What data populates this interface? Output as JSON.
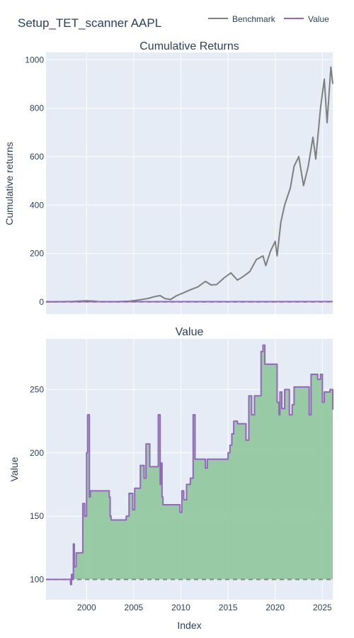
{
  "figure": {
    "title": "Setup_TET_scanner AAPL",
    "legend": [
      {
        "name": "Benchmark",
        "color": "#7f7f7f"
      },
      {
        "name": "Value",
        "color": "#9467bd"
      }
    ],
    "colors": {
      "plot_bg": "#e5ecf6",
      "grid": "#ffffff",
      "benchmark": "#7f7f7f",
      "value": "#9467bd",
      "fill": "#8fc79c",
      "baseline": "#888888"
    }
  },
  "chart_data": [
    {
      "type": "line",
      "title": "Cumulative Returns",
      "xlabel": "",
      "ylabel": "Cumulative returns",
      "xlim": [
        1995.7,
        2026.1
      ],
      "ylim": [
        -50,
        1030
      ],
      "x_ticks": [
        2000,
        2005,
        2010,
        2015,
        2020,
        2025
      ],
      "y_ticks": [
        0,
        200,
        400,
        600,
        800,
        1000
      ],
      "y_tick_labels": [
        "0",
        "200",
        "400",
        "600",
        "800",
        "1000"
      ],
      "grid": true,
      "legend": "top-right",
      "series": [
        {
          "name": "Benchmark",
          "x": [
            1995.7,
            1997.0,
            1998.5,
            2000.0,
            2000.8,
            2001.5,
            2003.0,
            2004.5,
            2005.5,
            2006.5,
            2007.2,
            2007.8,
            2008.3,
            2008.9,
            2009.5,
            2010.3,
            2011.0,
            2011.8,
            2012.6,
            2013.2,
            2013.8,
            2014.6,
            2015.3,
            2016.0,
            2016.6,
            2017.3,
            2018.0,
            2018.7,
            2019.0,
            2019.5,
            2020.0,
            2020.2,
            2020.6,
            2021.0,
            2021.6,
            2022.0,
            2022.5,
            2023.0,
            2023.5,
            2024.0,
            2024.3,
            2024.8,
            2025.2,
            2025.5,
            2025.9,
            2026.1
          ],
          "y": [
            0,
            1,
            2,
            5,
            3,
            1,
            1,
            3,
            8,
            14,
            22,
            26,
            14,
            10,
            25,
            38,
            50,
            62,
            85,
            70,
            72,
            100,
            120,
            90,
            105,
            125,
            175,
            190,
            150,
            210,
            250,
            190,
            330,
            400,
            470,
            560,
            600,
            480,
            560,
            680,
            590,
            800,
            920,
            740,
            970,
            900
          ]
        },
        {
          "name": "Value",
          "x": [
            1995.7,
            2026.1
          ],
          "y": [
            1,
            1.5
          ]
        }
      ],
      "baseline": {
        "value": 0,
        "style": "dashed"
      }
    },
    {
      "type": "area",
      "title": "Value",
      "xlabel": "Index",
      "ylabel": "Value",
      "xlim": [
        1995.7,
        2026.1
      ],
      "ylim": [
        84,
        290
      ],
      "x_ticks": [
        2000,
        2005,
        2010,
        2015,
        2020,
        2025
      ],
      "x_tick_labels": [
        "2000",
        "2005",
        "2010",
        "2015",
        "2020",
        "2025"
      ],
      "y_ticks": [
        100,
        150,
        200,
        250
      ],
      "y_tick_labels": [
        "100",
        "150",
        "200",
        "250"
      ],
      "grid": true,
      "series": [
        {
          "name": "Value",
          "x": [
            1995.7,
            1998.2,
            1998.3,
            1998.4,
            1998.5,
            1998.6,
            1998.7,
            1998.9,
            1999.4,
            1999.6,
            1999.8,
            2000.0,
            2000.1,
            2000.3,
            2000.4,
            2002.2,
            2002.4,
            2002.5,
            2002.6,
            2004.0,
            2004.2,
            2004.5,
            2004.9,
            2005.1,
            2005.5,
            2005.7,
            2006.1,
            2006.3,
            2006.7,
            2007.5,
            2007.6,
            2007.8,
            2007.9,
            2008.0,
            2008.1,
            2009.8,
            2009.9,
            2010.1,
            2010.3,
            2010.6,
            2011.0,
            2011.3,
            2011.5,
            2012.3,
            2012.6,
            2012.8,
            2014.8,
            2015.0,
            2015.2,
            2015.4,
            2015.6,
            2016.0,
            2016.8,
            2016.9,
            2017.2,
            2017.5,
            2017.8,
            2018.5,
            2018.7,
            2018.9,
            2019.0,
            2020.1,
            2020.2,
            2020.4,
            2020.5,
            2020.7,
            2021.0,
            2021.5,
            2021.8,
            2022.0,
            2022.5,
            2023.3,
            2023.6,
            2023.8,
            2024.0,
            2024.5,
            2024.8,
            2025.0,
            2025.2,
            2025.4,
            2025.8,
            2026.1
          ],
          "y": [
            100,
            100,
            96,
            104,
            100,
            128,
            110,
            121,
            121,
            160,
            150,
            200,
            230,
            165,
            170,
            170,
            165,
            150,
            147,
            147,
            150,
            168,
            155,
            172,
            172,
            190,
            180,
            207,
            189,
            189,
            230,
            175,
            192,
            165,
            159,
            159,
            153,
            170,
            163,
            175,
            180,
            230,
            195,
            195,
            188,
            195,
            195,
            200,
            206,
            215,
            225,
            223,
            223,
            210,
            245,
            230,
            245,
            280,
            285,
            270,
            270,
            270,
            240,
            230,
            248,
            235,
            250,
            230,
            238,
            252,
            252,
            252,
            230,
            262,
            262,
            258,
            262,
            240,
            248,
            248,
            250,
            234
          ]
        }
      ],
      "baseline": {
        "value": 100,
        "style": "dashed"
      },
      "fill_to": 100
    }
  ]
}
